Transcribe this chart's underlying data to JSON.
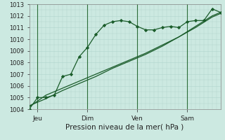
{
  "title": "Pression niveau de la mer( hPa )",
  "ylim": [
    1004,
    1013
  ],
  "yticks": [
    1004,
    1005,
    1006,
    1007,
    1008,
    1009,
    1010,
    1011,
    1012,
    1013
  ],
  "xtick_labels": [
    "Jeu",
    "Dim",
    "Ven",
    "Sam"
  ],
  "xtick_pos": [
    2,
    14,
    26,
    38
  ],
  "xlim": [
    0,
    46
  ],
  "bg_color": "#cce9e1",
  "grid_color": "#b0d4cc",
  "line_color": "#1a5c2a",
  "vline_color": "#2d6e3a",
  "series1_x": [
    0,
    2,
    4,
    6,
    8,
    10,
    12,
    14,
    16,
    18,
    20,
    22,
    24,
    26,
    28,
    30,
    32,
    34,
    36,
    38,
    40,
    42,
    44,
    46
  ],
  "series1_y": [
    1004.0,
    1005.0,
    1005.0,
    1005.2,
    1006.8,
    1007.0,
    1008.5,
    1009.3,
    1010.4,
    1011.2,
    1011.5,
    1011.6,
    1011.5,
    1011.1,
    1010.8,
    1010.8,
    1011.0,
    1011.1,
    1011.0,
    1011.5,
    1011.6,
    1011.6,
    1012.6,
    1012.3
  ],
  "series2_x": [
    0,
    4,
    8,
    12,
    16,
    20,
    24,
    28,
    32,
    36,
    40,
    44,
    46
  ],
  "series2_y": [
    1004.2,
    1005.2,
    1005.8,
    1006.4,
    1007.0,
    1007.6,
    1008.2,
    1008.8,
    1009.5,
    1010.2,
    1011.0,
    1011.9,
    1012.2
  ],
  "series3_x": [
    0,
    4,
    8,
    12,
    16,
    20,
    24,
    28,
    32,
    36,
    40,
    44,
    46
  ],
  "series3_y": [
    1004.3,
    1004.9,
    1005.6,
    1006.2,
    1006.8,
    1007.5,
    1008.1,
    1008.7,
    1009.4,
    1010.2,
    1011.1,
    1012.0,
    1012.3
  ]
}
